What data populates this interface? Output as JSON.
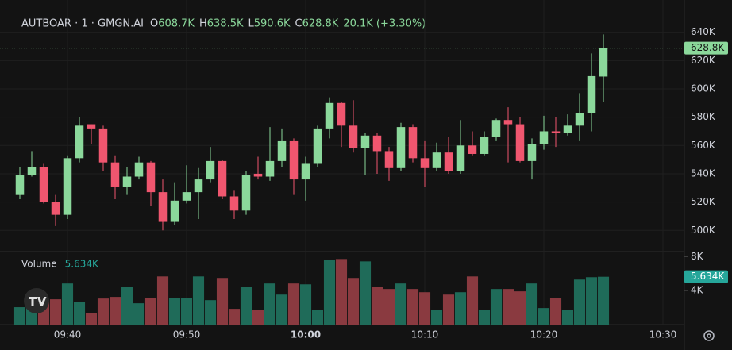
{
  "chart_data": {
    "type": "candlestick",
    "title": "AUTBOAR · 1 · GMGN.AI",
    "header": [
      {
        "key": "O",
        "value": "608.7K"
      },
      {
        "key": "H",
        "value": "638.5K"
      },
      {
        "key": "L",
        "value": "590.6K"
      },
      {
        "key": "C",
        "value": "628.8K"
      },
      {
        "key": "",
        "value": "20.1K (+3.30%)"
      }
    ],
    "x": [
      "09:36",
      "09:37",
      "09:38",
      "09:39",
      "09:40",
      "09:41",
      "09:42",
      "09:43",
      "09:44",
      "09:45",
      "09:46",
      "09:47",
      "09:48",
      "09:49",
      "09:50",
      "09:51",
      "09:52",
      "09:53",
      "09:54",
      "09:55",
      "09:56",
      "09:57",
      "09:58",
      "09:59",
      "10:00",
      "10:01",
      "10:02",
      "10:03",
      "10:04",
      "10:05",
      "10:06",
      "10:07",
      "10:08",
      "10:09",
      "10:10",
      "10:11",
      "10:12",
      "10:13",
      "10:14",
      "10:15",
      "10:16",
      "10:17",
      "10:18",
      "10:19",
      "10:20",
      "10:21",
      "10:22",
      "10:23",
      "10:24",
      "10:25"
    ],
    "open": [
      525,
      539,
      545,
      520,
      511,
      551,
      575,
      572,
      548,
      531,
      538,
      548,
      527,
      506,
      521,
      527,
      536,
      549,
      524,
      514,
      540,
      538,
      549,
      563,
      536,
      547,
      572,
      590,
      574,
      558,
      567,
      556,
      544,
      573,
      551,
      544,
      555,
      542,
      560,
      554,
      566,
      578,
      575,
      549,
      561,
      570,
      569,
      574,
      583,
      608.7
    ],
    "high": [
      545,
      556,
      547,
      525,
      553,
      580,
      575,
      574,
      553,
      545,
      552,
      549,
      536,
      534,
      546,
      544,
      559,
      550,
      528,
      542,
      552,
      573,
      572,
      565,
      552,
      574,
      594,
      591,
      592,
      569,
      569,
      559,
      576,
      575,
      563,
      562,
      566,
      578,
      570,
      570,
      579,
      587,
      580,
      565,
      581,
      580,
      582,
      597,
      625,
      638.5
    ],
    "low": [
      522,
      538,
      519,
      503,
      508,
      548,
      561,
      542,
      522,
      525,
      536,
      517,
      500,
      504,
      519,
      508,
      534,
      522,
      508,
      511,
      536,
      535,
      545,
      525,
      521,
      545,
      565,
      559,
      555,
      539,
      540,
      535,
      542,
      548,
      531,
      542,
      540,
      540,
      553,
      553,
      563,
      548,
      548,
      536,
      557,
      559,
      567,
      563,
      570,
      590.6
    ],
    "close": [
      539,
      545,
      520,
      511,
      551,
      574,
      572,
      548,
      531,
      538,
      548,
      527,
      506,
      521,
      527,
      536,
      549,
      524,
      514,
      539,
      538,
      549,
      563,
      536,
      547,
      572,
      590,
      574,
      558,
      567,
      556,
      544,
      573,
      551,
      544,
      555,
      542,
      560,
      554,
      566,
      578,
      575,
      549,
      561,
      570,
      569,
      574,
      583,
      609,
      628.8
    ],
    "up_color": "#8bd89b",
    "down_color": "#f0566f",
    "xlim": [
      "09:35",
      "10:32"
    ],
    "xticks": [
      "09:40",
      "09:50",
      "10:00",
      "10:10",
      "10:20",
      "10:30"
    ],
    "ylim": [
      485,
      660
    ],
    "yticks": [
      {
        "value": 500,
        "label": "500K"
      },
      {
        "value": 520,
        "label": "520K"
      },
      {
        "value": 540,
        "label": "540K"
      },
      {
        "value": 560,
        "label": "560K"
      },
      {
        "value": 580,
        "label": "580K"
      },
      {
        "value": 600,
        "label": "600K"
      },
      {
        "value": 620,
        "label": "620K"
      },
      {
        "value": 640,
        "label": "640K"
      }
    ],
    "last_price": {
      "value": 628.8,
      "label": "628.8K"
    },
    "grid": true,
    "volume": {
      "name": "Volume",
      "last_label": "5.634K",
      "values": [
        2.05,
        2.05,
        2.88,
        2.98,
        4.84,
        2.7,
        1.4,
        3.07,
        3.26,
        4.47,
        2.51,
        3.16,
        5.67,
        3.16,
        3.16,
        5.67,
        2.88,
        5.49,
        1.86,
        4.47,
        1.77,
        4.84,
        3.53,
        4.84,
        4.74,
        1.77,
        7.63,
        7.72,
        5.49,
        7.44,
        4.47,
        4.19,
        4.84,
        4.19,
        3.81,
        1.77,
        3.53,
        3.81,
        5.67,
        1.77,
        4.19,
        4.19,
        3.91,
        4.84,
        1.95,
        3.16,
        1.77,
        5.3,
        5.58,
        5.634
      ],
      "up_color": "#1f6b59",
      "down_color": "#8a3a40",
      "ylim": [
        0,
        8.5
      ],
      "yticks": [
        {
          "value": 4,
          "label": "4K"
        },
        {
          "value": 8,
          "label": "8K"
        }
      ]
    }
  }
}
